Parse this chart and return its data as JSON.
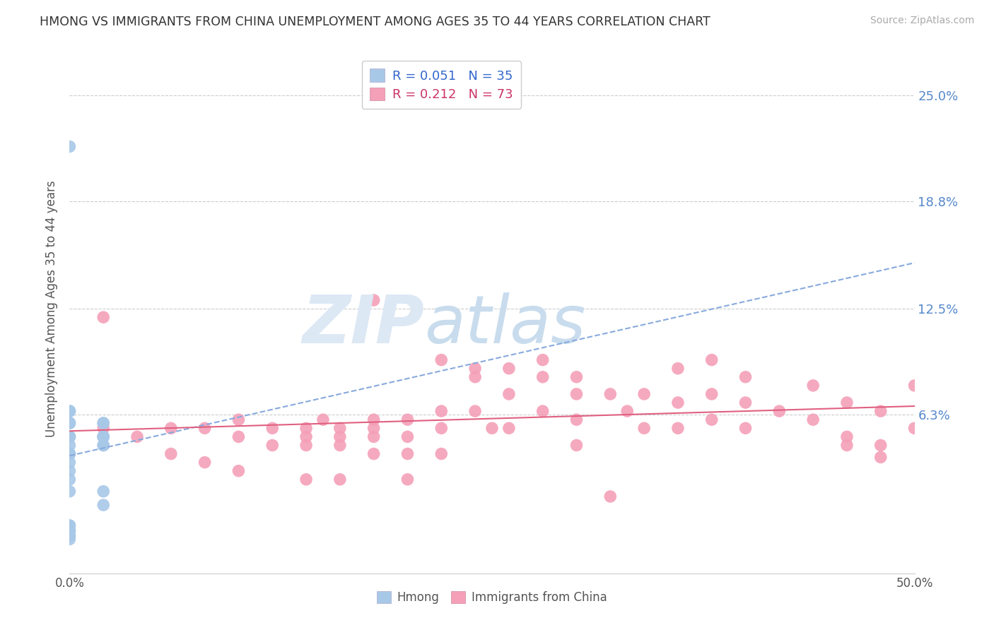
{
  "title": "HMONG VS IMMIGRANTS FROM CHINA UNEMPLOYMENT AMONG AGES 35 TO 44 YEARS CORRELATION CHART",
  "source": "Source: ZipAtlas.com",
  "ylabel": "Unemployment Among Ages 35 to 44 years",
  "xmin": 0.0,
  "xmax": 0.5,
  "ymin": -0.03,
  "ymax": 0.28,
  "yticks": [
    0.0,
    0.063,
    0.125,
    0.188,
    0.25
  ],
  "ytick_labels": [
    "",
    "6.3%",
    "12.5%",
    "18.8%",
    "25.0%"
  ],
  "xticks": [
    0.0,
    0.1,
    0.2,
    0.3,
    0.4,
    0.5
  ],
  "xtick_labels": [
    "0.0%",
    "",
    "",
    "",
    "",
    "50.0%"
  ],
  "hmong_color": "#a8c8e8",
  "china_color": "#f4a0b8",
  "trendline_hmong_color": "#88aadd",
  "trendline_china_color": "#e06080",
  "legend_R_hmong": "R = 0.051",
  "legend_N_hmong": "N = 35",
  "legend_R_china": "R = 0.212",
  "legend_N_china": "N = 73",
  "hmong_x": [
    0.0,
    0.0,
    0.0,
    0.0,
    0.0,
    0.0,
    0.0,
    0.0,
    0.0,
    0.0,
    0.02,
    0.02,
    0.02,
    0.02,
    0.02,
    0.02,
    0.02,
    0.02,
    0.0,
    0.0,
    0.0,
    0.0,
    0.0,
    0.0,
    0.0,
    0.0,
    0.02,
    0.02,
    0.0,
    0.0,
    0.0,
    0.0,
    0.0,
    0.0,
    0.0
  ],
  "hmong_y": [
    0.22,
    0.065,
    0.065,
    0.065,
    0.058,
    0.058,
    0.058,
    0.05,
    0.05,
    0.05,
    0.058,
    0.058,
    0.05,
    0.05,
    0.05,
    0.05,
    0.045,
    0.045,
    0.045,
    0.04,
    0.04,
    0.04,
    0.035,
    0.03,
    0.025,
    0.018,
    0.018,
    0.01,
    -0.002,
    -0.002,
    -0.005,
    -0.005,
    -0.008,
    -0.008,
    -0.01
  ],
  "china_x": [
    0.02,
    0.06,
    0.08,
    0.1,
    0.1,
    0.12,
    0.12,
    0.14,
    0.14,
    0.14,
    0.15,
    0.16,
    0.16,
    0.16,
    0.18,
    0.18,
    0.18,
    0.18,
    0.2,
    0.2,
    0.2,
    0.22,
    0.22,
    0.22,
    0.24,
    0.24,
    0.25,
    0.26,
    0.26,
    0.28,
    0.28,
    0.3,
    0.3,
    0.3,
    0.32,
    0.33,
    0.34,
    0.34,
    0.36,
    0.36,
    0.38,
    0.38,
    0.4,
    0.4,
    0.42,
    0.44,
    0.44,
    0.46,
    0.46,
    0.48,
    0.48,
    0.5,
    0.5,
    0.02,
    0.04,
    0.06,
    0.08,
    0.1,
    0.18,
    0.22,
    0.24,
    0.26,
    0.28,
    0.3,
    0.36,
    0.38,
    0.4,
    0.14,
    0.16,
    0.2,
    0.32,
    0.46,
    0.48
  ],
  "china_y": [
    0.055,
    0.055,
    0.055,
    0.06,
    0.05,
    0.055,
    0.045,
    0.05,
    0.055,
    0.045,
    0.06,
    0.055,
    0.05,
    0.045,
    0.06,
    0.055,
    0.05,
    0.04,
    0.06,
    0.05,
    0.04,
    0.065,
    0.055,
    0.04,
    0.085,
    0.065,
    0.055,
    0.075,
    0.055,
    0.085,
    0.065,
    0.075,
    0.06,
    0.045,
    0.075,
    0.065,
    0.075,
    0.055,
    0.07,
    0.055,
    0.075,
    0.06,
    0.07,
    0.055,
    0.065,
    0.08,
    0.06,
    0.07,
    0.05,
    0.065,
    0.045,
    0.08,
    0.055,
    0.12,
    0.05,
    0.04,
    0.035,
    0.03,
    0.13,
    0.095,
    0.09,
    0.09,
    0.095,
    0.085,
    0.09,
    0.095,
    0.085,
    0.025,
    0.025,
    0.025,
    0.015,
    0.045,
    0.038
  ]
}
